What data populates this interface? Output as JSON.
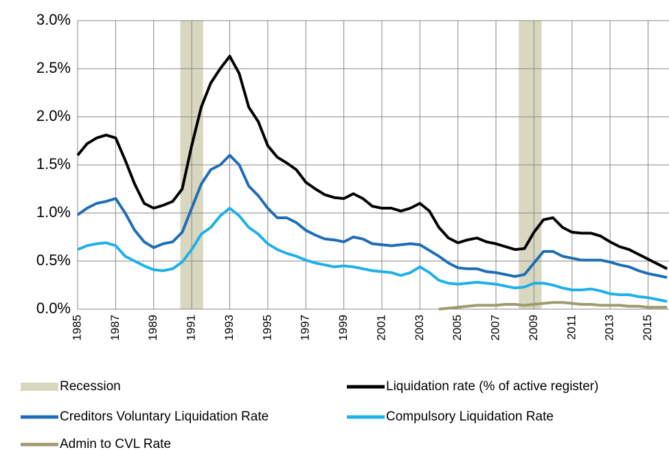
{
  "chart_data": {
    "type": "line",
    "x": [
      1985,
      1985.5,
      1986,
      1986.5,
      1987,
      1987.5,
      1988,
      1988.5,
      1989,
      1989.5,
      1990,
      1990.5,
      1991,
      1991.5,
      1992,
      1992.5,
      1993,
      1993.5,
      1994,
      1994.5,
      1995,
      1995.5,
      1996,
      1996.5,
      1997,
      1997.5,
      1998,
      1998.5,
      1999,
      1999.5,
      2000,
      2000.5,
      2001,
      2001.5,
      2002,
      2002.5,
      2003,
      2003.5,
      2004,
      2004.5,
      2005,
      2005.5,
      2006,
      2006.5,
      2007,
      2007.5,
      2008,
      2008.5,
      2009,
      2009.5,
      2010,
      2010.5,
      2011,
      2011.5,
      2012,
      2012.5,
      2013,
      2013.5,
      2014,
      2014.5,
      2015,
      2015.5,
      2016
    ],
    "series": [
      {
        "name": "Liquidation rate (% of active register)",
        "color": "#000000",
        "values": [
          1.6,
          1.72,
          1.78,
          1.81,
          1.78,
          1.55,
          1.3,
          1.1,
          1.05,
          1.08,
          1.12,
          1.25,
          1.7,
          2.1,
          2.35,
          2.5,
          2.63,
          2.45,
          2.1,
          1.95,
          1.7,
          1.58,
          1.52,
          1.45,
          1.32,
          1.25,
          1.19,
          1.16,
          1.15,
          1.2,
          1.15,
          1.07,
          1.05,
          1.05,
          1.02,
          1.05,
          1.1,
          1.02,
          0.85,
          0.74,
          0.69,
          0.72,
          0.74,
          0.7,
          0.68,
          0.65,
          0.62,
          0.63,
          0.8,
          0.93,
          0.95,
          0.85,
          0.8,
          0.79,
          0.79,
          0.76,
          0.7,
          0.65,
          0.62,
          0.57,
          0.52,
          0.47,
          0.42
        ]
      },
      {
        "name": "Creditors Voluntary Liquidation Rate",
        "color": "#1f6db5",
        "values": [
          0.98,
          1.05,
          1.1,
          1.12,
          1.15,
          1.0,
          0.82,
          0.7,
          0.64,
          0.68,
          0.7,
          0.8,
          1.05,
          1.3,
          1.45,
          1.5,
          1.6,
          1.5,
          1.28,
          1.18,
          1.05,
          0.95,
          0.95,
          0.9,
          0.82,
          0.77,
          0.73,
          0.72,
          0.7,
          0.75,
          0.73,
          0.68,
          0.67,
          0.66,
          0.67,
          0.68,
          0.67,
          0.61,
          0.55,
          0.48,
          0.43,
          0.42,
          0.42,
          0.39,
          0.38,
          0.36,
          0.34,
          0.36,
          0.48,
          0.6,
          0.6,
          0.55,
          0.53,
          0.51,
          0.51,
          0.51,
          0.49,
          0.46,
          0.44,
          0.4,
          0.37,
          0.35,
          0.33
        ]
      },
      {
        "name": "Compulsory Liquidation Rate",
        "color": "#1fb0e8",
        "values": [
          0.62,
          0.66,
          0.68,
          0.69,
          0.66,
          0.55,
          0.5,
          0.45,
          0.41,
          0.4,
          0.42,
          0.49,
          0.62,
          0.78,
          0.85,
          0.97,
          1.05,
          0.97,
          0.85,
          0.78,
          0.68,
          0.62,
          0.58,
          0.55,
          0.51,
          0.48,
          0.46,
          0.44,
          0.45,
          0.44,
          0.42,
          0.4,
          0.39,
          0.38,
          0.35,
          0.38,
          0.44,
          0.38,
          0.3,
          0.27,
          0.26,
          0.27,
          0.28,
          0.27,
          0.26,
          0.24,
          0.22,
          0.23,
          0.27,
          0.27,
          0.25,
          0.22,
          0.2,
          0.2,
          0.21,
          0.19,
          0.16,
          0.15,
          0.15,
          0.13,
          0.12,
          0.1,
          0.08
        ]
      },
      {
        "name": "Admin to CVL Rate",
        "color": "#9e9a6e",
        "values": [
          null,
          null,
          null,
          null,
          null,
          null,
          null,
          null,
          null,
          null,
          null,
          null,
          null,
          null,
          null,
          null,
          null,
          null,
          null,
          null,
          null,
          null,
          null,
          null,
          null,
          null,
          null,
          null,
          null,
          null,
          null,
          null,
          null,
          null,
          null,
          null,
          null,
          null,
          0,
          0.01,
          0.02,
          0.03,
          0.04,
          0.04,
          0.04,
          0.05,
          0.05,
          0.04,
          0.05,
          0.06,
          0.07,
          0.07,
          0.06,
          0.05,
          0.05,
          0.04,
          0.04,
          0.04,
          0.03,
          0.03,
          0.02,
          0.02,
          0.02
        ]
      }
    ],
    "recession_name": "Recession",
    "recession_color": "#d8d8c0",
    "recessions": [
      {
        "start": 1990.4,
        "end": 1991.6
      },
      {
        "start": 2008.2,
        "end": 2009.4
      }
    ],
    "xlim": [
      1985,
      2016.1
    ],
    "xticks": [
      1985,
      1987,
      1989,
      1991,
      1993,
      1995,
      1997,
      1999,
      2001,
      2003,
      2005,
      2007,
      2009,
      2011,
      2013,
      2015
    ],
    "ylim": [
      0,
      3
    ],
    "yticks": [
      {
        "value": 0,
        "label": "0.0%"
      },
      {
        "value": 0.5,
        "label": "0.5%"
      },
      {
        "value": 1,
        "label": "1.0%"
      },
      {
        "value": 1.5,
        "label": "1.5%"
      },
      {
        "value": 2,
        "label": "2.0%"
      },
      {
        "value": 2.5,
        "label": "2.5%"
      },
      {
        "value": 3,
        "label": "3.0%"
      }
    ],
    "grid": true
  }
}
